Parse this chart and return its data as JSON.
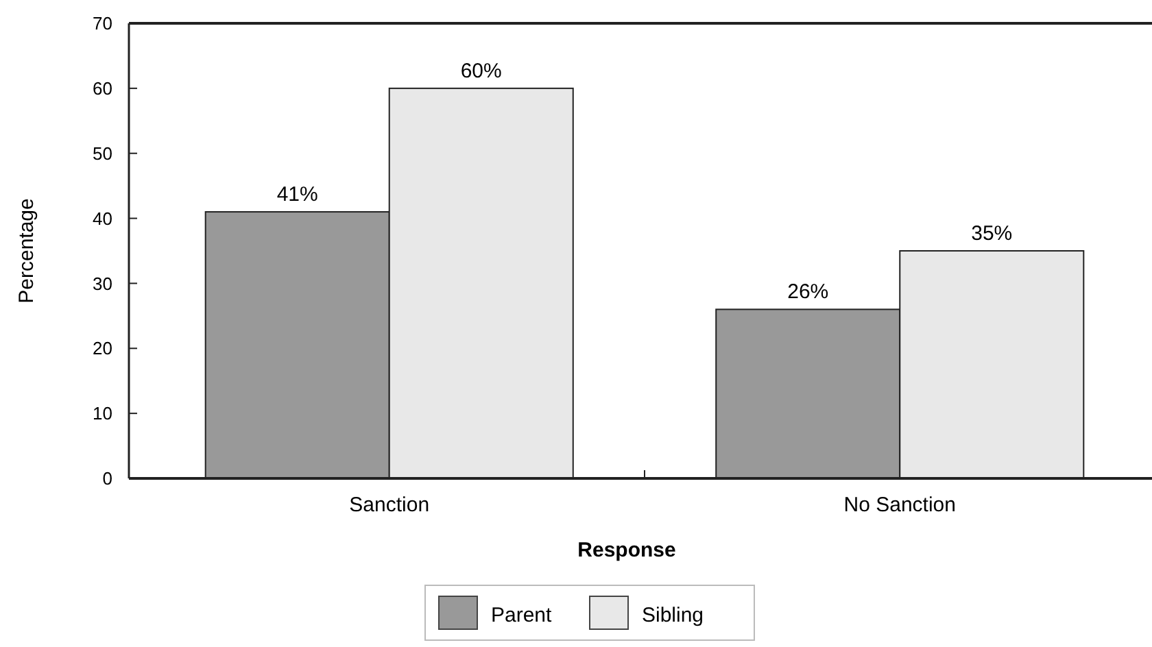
{
  "chart_data": {
    "type": "bar",
    "xlabel": "Response",
    "ylabel": "Percentage",
    "categories": [
      "Sanction",
      "No Sanction"
    ],
    "series": [
      {
        "name": "Parent",
        "color": "#999999",
        "values": [
          41,
          26
        ],
        "value_labels": [
          "41%",
          "26%"
        ]
      },
      {
        "name": "Sibling",
        "color": "#e8e8e8",
        "values": [
          60,
          35
        ],
        "value_labels": [
          "60%",
          "35%"
        ]
      }
    ],
    "ylim": [
      0,
      70
    ],
    "yticks": [
      0,
      10,
      20,
      30,
      40,
      50,
      60,
      70
    ],
    "grid": false,
    "legend": "bottom"
  }
}
